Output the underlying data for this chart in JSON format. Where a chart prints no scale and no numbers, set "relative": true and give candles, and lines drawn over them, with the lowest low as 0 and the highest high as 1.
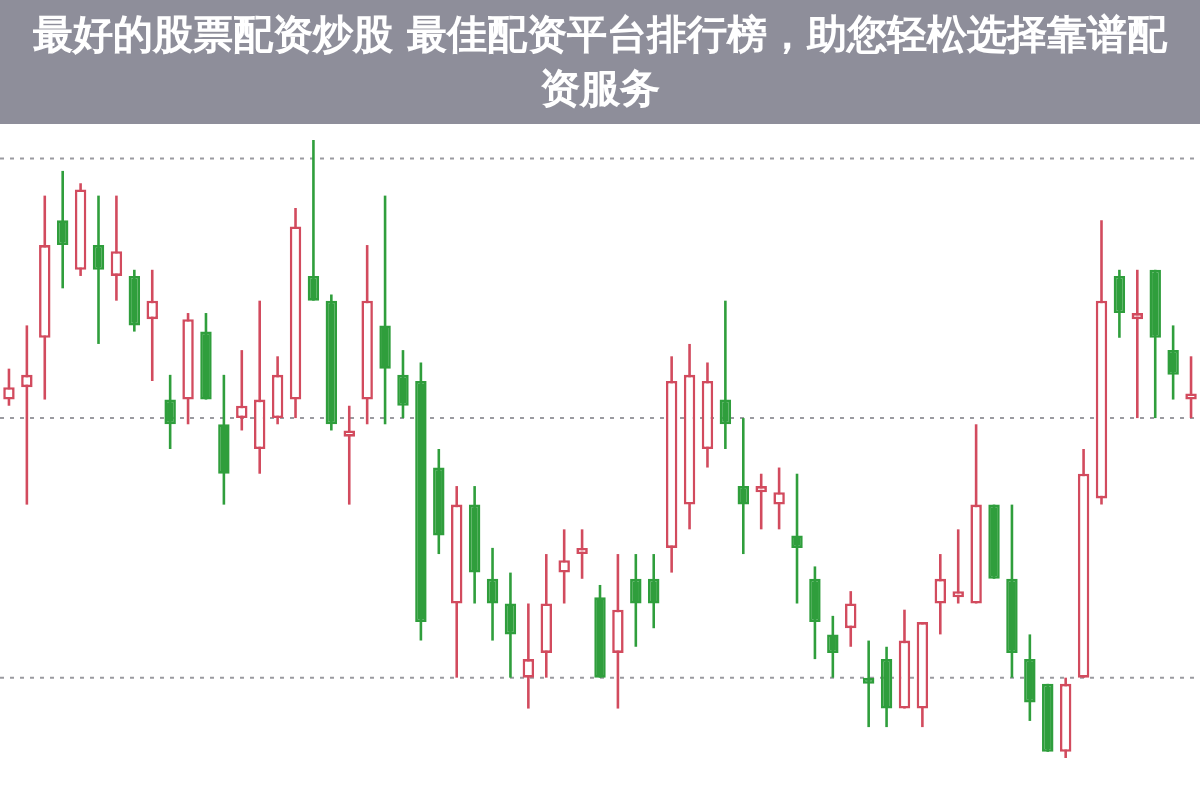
{
  "chart_data": {
    "type": "candlestick",
    "title": "最好的股票配资炒股 最佳配资平台排行榜，助您轻松选择靠谱配资服务",
    "relative": true,
    "categories": [
      null,
      null,
      null,
      null,
      null,
      null,
      null,
      null,
      null,
      null,
      null,
      null,
      null,
      null,
      null,
      null,
      null,
      null,
      null,
      null,
      null,
      null,
      null,
      null,
      null,
      null,
      null,
      null,
      null,
      null,
      null,
      null,
      null,
      null,
      null,
      null,
      null,
      null,
      null,
      null,
      null,
      null,
      null,
      null,
      null,
      null,
      null,
      null,
      null,
      null,
      null,
      null,
      null,
      null,
      null,
      null,
      null,
      null,
      null,
      null,
      null,
      null,
      null,
      null,
      null,
      null,
      null
    ],
    "ohlc": [
      [
        0.58,
        0.63,
        0.57,
        0.6
      ],
      [
        0.6,
        0.7,
        0.41,
        0.62
      ],
      [
        0.68,
        0.91,
        0.58,
        0.83
      ],
      [
        0.87,
        0.95,
        0.76,
        0.83
      ],
      [
        0.79,
        0.93,
        0.78,
        0.92
      ],
      [
        0.83,
        0.91,
        0.67,
        0.79
      ],
      [
        0.78,
        0.91,
        0.74,
        0.82
      ],
      [
        0.78,
        0.79,
        0.69,
        0.7
      ],
      [
        0.71,
        0.79,
        0.61,
        0.74
      ],
      [
        0.58,
        0.62,
        0.5,
        0.54
      ],
      [
        0.58,
        0.72,
        0.54,
        0.71
      ],
      [
        0.69,
        0.72,
        0.58,
        0.58
      ],
      [
        0.54,
        0.62,
        0.41,
        0.46
      ],
      [
        0.55,
        0.66,
        0.53,
        0.57
      ],
      [
        0.5,
        0.74,
        0.46,
        0.58
      ],
      [
        0.55,
        0.65,
        0.54,
        0.62
      ],
      [
        0.58,
        0.89,
        0.55,
        0.86
      ],
      [
        0.78,
        1,
        0.74,
        0.74
      ],
      [
        0.74,
        0.75,
        0.53,
        0.54
      ],
      [
        0.52,
        0.57,
        0.41,
        0.53
      ],
      [
        0.58,
        0.83,
        0.54,
        0.74
      ],
      [
        0.7,
        0.91,
        0.54,
        0.63
      ],
      [
        0.62,
        0.66,
        0.55,
        0.57
      ],
      [
        0.61,
        0.64,
        0.19,
        0.22
      ],
      [
        0.47,
        0.5,
        0.33,
        0.36
      ],
      [
        0.25,
        0.44,
        0.13,
        0.41
      ],
      [
        0.41,
        0.44,
        0.25,
        0.3
      ],
      [
        0.29,
        0.34,
        0.19,
        0.25
      ],
      [
        0.25,
        0.3,
        0.13,
        0.2
      ],
      [
        0.13,
        0.25,
        0.08,
        0.16
      ],
      [
        0.17,
        0.33,
        0.13,
        0.25
      ],
      [
        0.3,
        0.37,
        0.25,
        0.32
      ],
      [
        0.33,
        0.37,
        0.29,
        0.34
      ],
      [
        0.26,
        0.28,
        0.13,
        0.13
      ],
      [
        0.17,
        0.33,
        0.08,
        0.24
      ],
      [
        0.29,
        0.33,
        0.18,
        0.25
      ],
      [
        0.29,
        0.33,
        0.21,
        0.25
      ],
      [
        0.34,
        0.65,
        0.3,
        0.61
      ],
      [
        0.41,
        0.67,
        0.37,
        0.62
      ],
      [
        0.5,
        0.64,
        0.47,
        0.61
      ],
      [
        0.58,
        0.74,
        0.5,
        0.54
      ],
      [
        0.44,
        0.55,
        0.33,
        0.41
      ],
      [
        0.43,
        0.46,
        0.37,
        0.44
      ],
      [
        0.41,
        0.47,
        0.37,
        0.43
      ],
      [
        0.36,
        0.46,
        0.25,
        0.34
      ],
      [
        0.29,
        0.31,
        0.16,
        0.22
      ],
      [
        0.2,
        0.23,
        0.13,
        0.17
      ],
      [
        0.21,
        0.27,
        0.18,
        0.25
      ],
      [
        0.13,
        0.19,
        0.05,
        0.12
      ],
      [
        0.16,
        0.18,
        0.05,
        0.08
      ],
      [
        0.08,
        0.24,
        0.08,
        0.19
      ],
      [
        0.08,
        0.22,
        0.05,
        0.22
      ],
      [
        0.25,
        0.33,
        0.2,
        0.29
      ],
      [
        0.26,
        0.37,
        0.25,
        0.27
      ],
      [
        0.25,
        0.54,
        0.25,
        0.41
      ],
      [
        0.41,
        0.41,
        0.29,
        0.29
      ],
      [
        0.29,
        0.41,
        0.13,
        0.17
      ],
      [
        0.16,
        0.2,
        0.06,
        0.09
      ],
      [
        0.12,
        0.12,
        0.01,
        0.01
      ],
      [
        0.01,
        0.13,
        0,
        0.12
      ],
      [
        0.13,
        0.5,
        0.13,
        0.46
      ],
      [
        0.42,
        0.87,
        0.41,
        0.74
      ],
      [
        0.78,
        0.79,
        0.68,
        0.72
      ],
      [
        0.71,
        0.79,
        0.55,
        0.72
      ],
      [
        0.79,
        0.79,
        0.55,
        0.68
      ],
      [
        0.66,
        0.7,
        0.58,
        0.62
      ],
      [
        0.58,
        0.65,
        0.55,
        0.59
      ]
    ],
    "colors": [
      "#d24b5e",
      "#d24b5e",
      "#d24b5e",
      "#2f9e3c",
      "#d24b5e",
      "#2f9e3c",
      "#d24b5e",
      "#2f9e3c",
      "#d24b5e",
      "#2f9e3c",
      "#d24b5e",
      "#2f9e3c",
      "#2f9e3c",
      "#d24b5e",
      "#d24b5e",
      "#d24b5e",
      "#d24b5e",
      "#2f9e3c",
      "#2f9e3c",
      "#d24b5e",
      "#d24b5e",
      "#2f9e3c",
      "#2f9e3c",
      "#2f9e3c",
      "#2f9e3c",
      "#d24b5e",
      "#2f9e3c",
      "#2f9e3c",
      "#2f9e3c",
      "#d24b5e",
      "#d24b5e",
      "#d24b5e",
      "#d24b5e",
      "#2f9e3c",
      "#d24b5e",
      "#2f9e3c",
      "#2f9e3c",
      "#d24b5e",
      "#d24b5e",
      "#d24b5e",
      "#2f9e3c",
      "#2f9e3c",
      "#d24b5e",
      "#d24b5e",
      "#2f9e3c",
      "#2f9e3c",
      "#2f9e3c",
      "#d24b5e",
      "#2f9e3c",
      "#2f9e3c",
      "#d24b5e",
      "#d24b5e",
      "#d24b5e",
      "#d24b5e",
      "#d24b5e",
      "#2f9e3c",
      "#2f9e3c",
      "#2f9e3c",
      "#2f9e3c",
      "#d24b5e",
      "#d24b5e",
      "#d24b5e",
      "#2f9e3c",
      "#d24b5e",
      "#2f9e3c",
      "#2f9e3c",
      "#d24b5e"
    ],
    "ref_lines": [
      {
        "axis": "y",
        "value": 0.97,
        "color": "#9a9aa0",
        "line_style": "dotted"
      },
      {
        "axis": "y",
        "value": 0.55,
        "color": "#9a9aa0",
        "line_style": "dotted"
      },
      {
        "axis": "y",
        "value": 0.13,
        "color": "#9a9aa0",
        "line_style": "dotted"
      }
    ]
  }
}
